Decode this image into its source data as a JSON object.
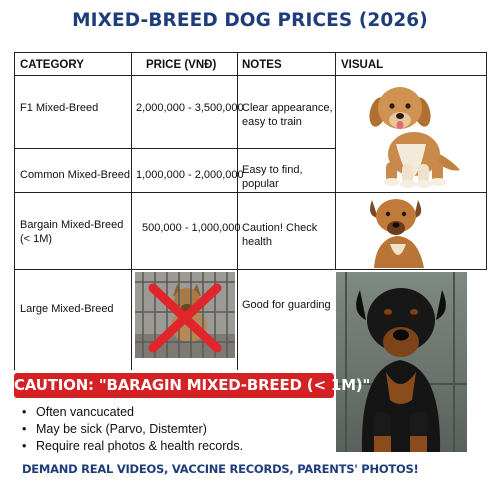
{
  "title": "MIXED-BREED DOG PRICES (2026)",
  "table": {
    "headers": [
      "CATEGORY",
      "PRICE (VNĐ)",
      "NOTES",
      "VISUAL"
    ],
    "rows": [
      {
        "category": "F1 Mixed-Breed",
        "price": "2,000,000 - 3,500,000",
        "notes": "Clear appearance, easy to train",
        "visual": "fluffy-golden-puppy"
      },
      {
        "category": "Common Mixed-Breed",
        "price": "1,000,000 - 2,000,000",
        "notes": "Easy to find, popular",
        "visual": ""
      },
      {
        "category": "Bargain Mixed-Breed (< 1M)",
        "price": "500,000 - 1,000,000",
        "notes": "Caution! Check health",
        "visual": "tan-mixed-dog"
      },
      {
        "category": "Large Mixed-Breed",
        "price": "",
        "notes": "Good for guarding",
        "visual": "caged-dog-crossed-out"
      }
    ]
  },
  "caution": {
    "heading": "CAUTION: \"BARAGIN MIXED-BREED (< 1M)\"",
    "items": [
      "Often vancucated",
      "May be sick (Parvo, Distemter)",
      "Require real photos & health records."
    ]
  },
  "footer": "DEMAND REAL VIDEOS, VACCINE RECORDS, PARENTS' PHOTOS!",
  "images": {
    "rottweiler": "rottweiler-dog-photo"
  },
  "colors": {
    "title": "#1f3d7a",
    "caution_bg": "#d32124",
    "cross": "#e0262b",
    "border": "#222222"
  }
}
